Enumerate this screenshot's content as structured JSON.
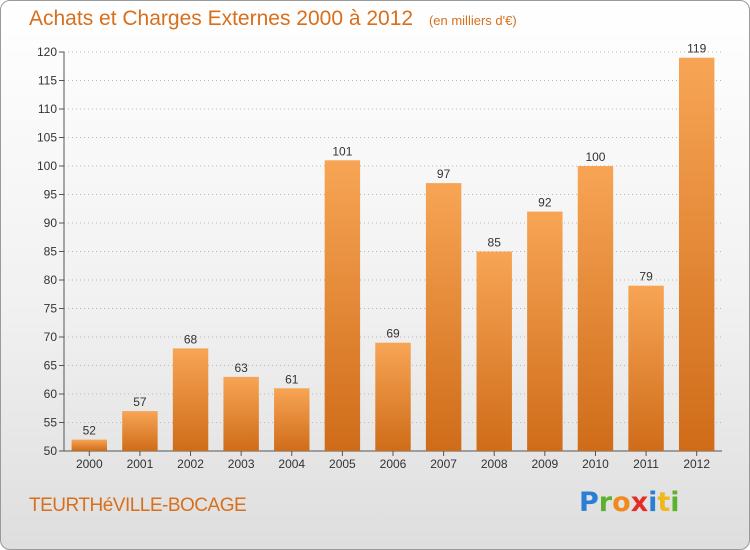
{
  "header": {
    "title": "Achats et Charges Externes 2000 à 2012",
    "subtitle": "(en milliers d'€)"
  },
  "footer": {
    "location": "TEURTHéVILLE-BOCAGE"
  },
  "logo": {
    "text": "Proxiti",
    "letters": [
      {
        "char": "P",
        "color": "#2a7fd4"
      },
      {
        "char": "r",
        "color": "#5ab22e"
      },
      {
        "char": "o",
        "color": "#f08a1c"
      },
      {
        "char": "x",
        "color": "#e52d27"
      },
      {
        "char": "i",
        "color": "#2a7fd4"
      },
      {
        "char": "t",
        "color": "#f0b81c"
      },
      {
        "char": "i",
        "color": "#5ab22e"
      }
    ]
  },
  "colors": {
    "accent": "#d86f1c",
    "bar_top": "#f7a555",
    "bar_bottom": "#cf6c19"
  },
  "chart_data": {
    "type": "bar",
    "categories": [
      "2000",
      "2001",
      "2002",
      "2003",
      "2004",
      "2005",
      "2006",
      "2007",
      "2008",
      "2009",
      "2010",
      "2011",
      "2012"
    ],
    "values": [
      52,
      57,
      68,
      63,
      61,
      101,
      69,
      97,
      85,
      92,
      100,
      79,
      119
    ],
    "title": "Achats et Charges Externes 2000 à 2012",
    "ylabel": "",
    "xlabel": "",
    "ylim": [
      50,
      120
    ],
    "yticks": [
      50,
      55,
      60,
      65,
      70,
      75,
      80,
      85,
      90,
      95,
      100,
      105,
      110,
      115,
      120
    ],
    "grid": "horizontal-dotted",
    "data_labels": true
  }
}
